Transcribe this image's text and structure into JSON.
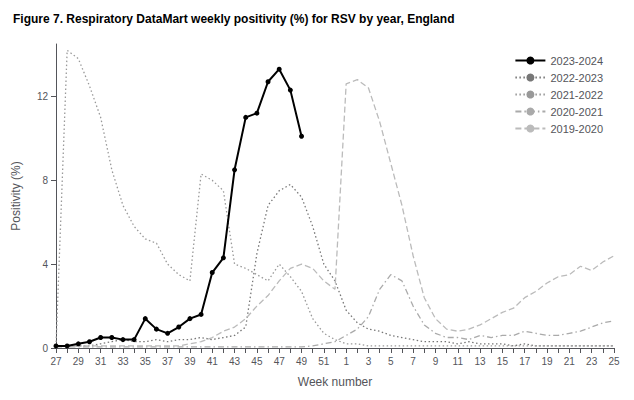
{
  "chart_data": {
    "type": "line",
    "title": "Figure 7. Respiratory DataMart weekly positivity (%) for RSV by year, England",
    "x_label": "Week number",
    "y_label": "Positivity (%)",
    "categories": [
      "27",
      null,
      "29",
      null,
      "31",
      null,
      "33",
      null,
      "35",
      null,
      "37",
      null,
      "39",
      null,
      "41",
      null,
      "43",
      null,
      "45",
      null,
      "47",
      null,
      "49",
      null,
      "51",
      null,
      "1",
      null,
      "3",
      null,
      "5",
      null,
      "7",
      null,
      "9",
      null,
      "11",
      null,
      "13",
      null,
      "15",
      null,
      "17",
      null,
      "19",
      null,
      "21",
      null,
      "23",
      null,
      "25"
    ],
    "ylim": [
      0,
      14.5
    ],
    "yticks": [
      0,
      4,
      8,
      12
    ],
    "grid": false,
    "legend": "upper right",
    "series": [
      {
        "name": "2023-2024",
        "color": "#000000",
        "line_style": "solid",
        "marker": "circle",
        "values": [
          0.1,
          0.1,
          0.2,
          0.3,
          0.5,
          0.5,
          0.4,
          0.4,
          1.4,
          0.9,
          0.7,
          1.0,
          1.4,
          1.6,
          3.6,
          4.3,
          8.5,
          11.0,
          11.2,
          12.7,
          13.3,
          12.3,
          10.1,
          null,
          null,
          null,
          null,
          null,
          null,
          null,
          null,
          null,
          null,
          null,
          null,
          null,
          null,
          null,
          null,
          null,
          null,
          null,
          null,
          null,
          null,
          null,
          null,
          null,
          null,
          null,
          null
        ]
      },
      {
        "name": "2022-2023",
        "color": "#777777",
        "line_style": "dotted",
        "values": [
          0.1,
          0.1,
          0.1,
          0.1,
          0.2,
          0.3,
          0.4,
          0.3,
          0.3,
          0.4,
          0.3,
          0.4,
          0.4,
          0.5,
          0.4,
          0.5,
          0.6,
          1.0,
          4.5,
          6.8,
          7.5,
          7.8,
          7.2,
          5.8,
          4.0,
          3.2,
          1.8,
          1.2,
          0.9,
          0.8,
          0.6,
          0.5,
          0.4,
          0.3,
          0.3,
          0.3,
          0.2,
          0.3,
          0.2,
          0.2,
          0.2,
          0.1,
          0.2,
          0.1,
          0.1,
          0.1,
          0.1,
          0.1,
          0.1,
          0.1,
          0.1
        ]
      },
      {
        "name": "2021-2022",
        "color": "#999999",
        "line_style": "dotted",
        "values": [
          0.1,
          14.2,
          13.8,
          12.5,
          11.0,
          8.5,
          6.8,
          5.8,
          5.2,
          5.0,
          4.0,
          3.5,
          3.2,
          8.3,
          8.0,
          7.5,
          4.0,
          3.8,
          3.5,
          3.2,
          4.0,
          3.4,
          2.7,
          1.4,
          0.7,
          0.4,
          0.2,
          0.2,
          0.1,
          0.1,
          0.1,
          0.1,
          0.1,
          0.1,
          0.1,
          0.1,
          0.1,
          0.1,
          0.1,
          0.1,
          0.1,
          0.1,
          0.1,
          0.1,
          0.1,
          0.1,
          0.1,
          0.1,
          0.1,
          0.1,
          0.1
        ]
      },
      {
        "name": "2020-2021",
        "color": "#aaaaaa",
        "line_style": "dashdot",
        "values": [
          0.05,
          0.05,
          0.05,
          0.05,
          0.05,
          0.05,
          0.05,
          0.05,
          0.05,
          0.05,
          0.05,
          0.05,
          0.05,
          0.05,
          0.05,
          0.05,
          0.05,
          0.05,
          0.05,
          0.05,
          0.05,
          0.05,
          0.05,
          0.1,
          0.2,
          0.3,
          0.6,
          0.9,
          1.5,
          2.8,
          3.5,
          3.2,
          2.0,
          1.1,
          0.7,
          0.5,
          0.5,
          0.4,
          0.6,
          0.5,
          0.6,
          0.6,
          0.8,
          0.7,
          0.6,
          0.6,
          0.7,
          0.8,
          1.0,
          1.2,
          1.3
        ]
      },
      {
        "name": "2019-2020",
        "color": "#bbbbbb",
        "line_style": "dashed",
        "values": [
          0.1,
          0.1,
          0.1,
          0.1,
          0.1,
          0.1,
          0.1,
          0.1,
          0.1,
          0.1,
          0.1,
          0.1,
          0.2,
          0.3,
          0.5,
          0.8,
          1.0,
          1.4,
          2.0,
          2.5,
          3.2,
          3.8,
          4.0,
          3.8,
          3.2,
          2.8,
          12.6,
          12.8,
          12.4,
          10.8,
          8.8,
          6.8,
          4.4,
          2.4,
          1.4,
          0.9,
          0.8,
          0.9,
          1.1,
          1.4,
          1.7,
          1.9,
          2.4,
          2.7,
          3.1,
          3.4,
          3.5,
          3.9,
          3.7,
          4.1,
          4.4
        ]
      }
    ]
  }
}
